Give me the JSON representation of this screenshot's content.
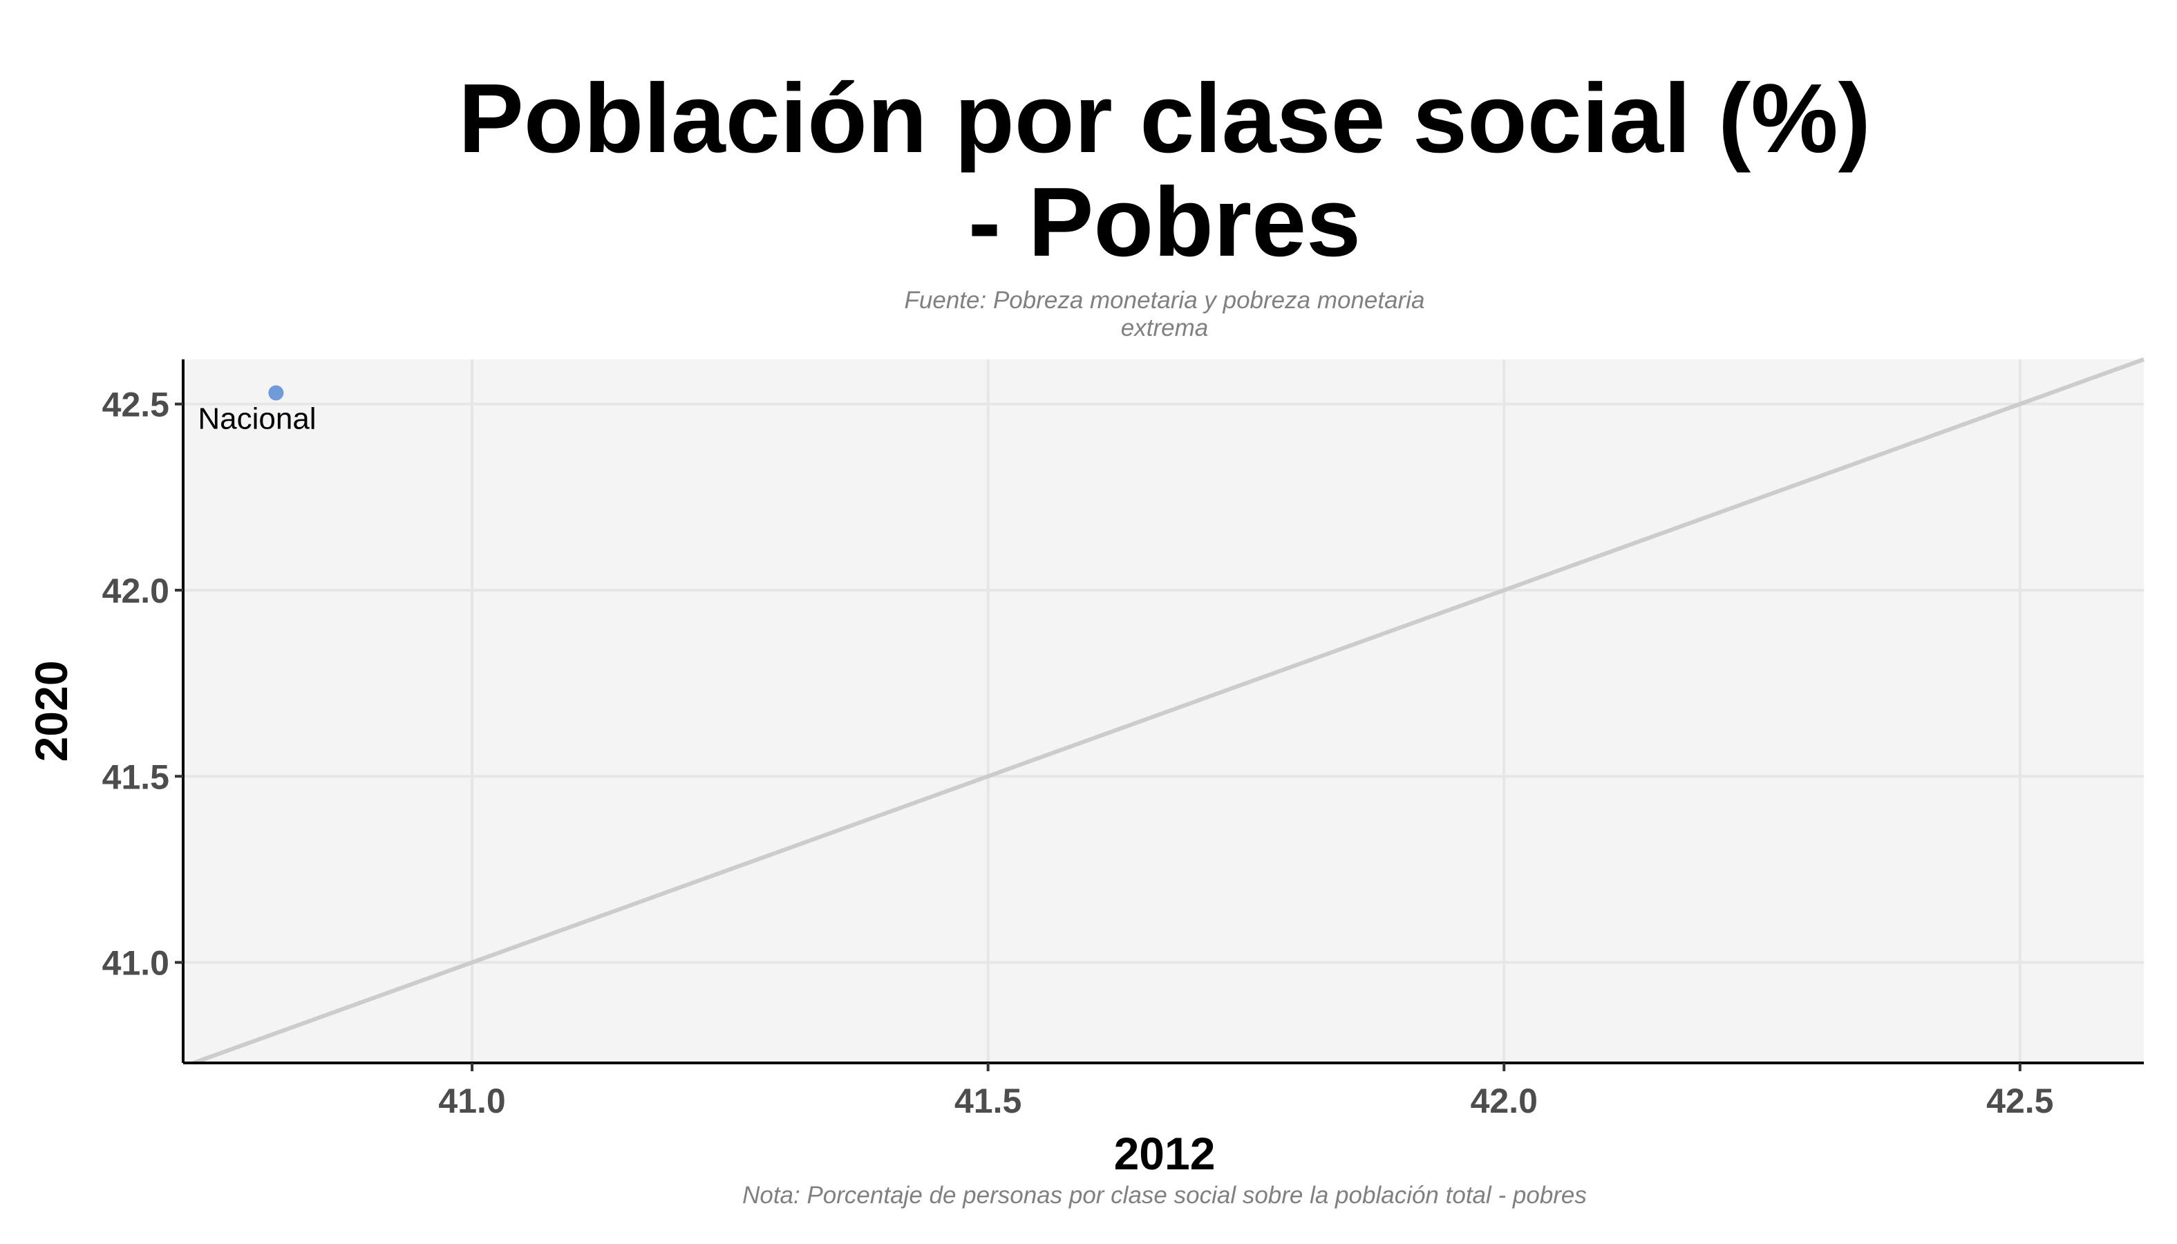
{
  "chart_data": {
    "type": "scatter",
    "title_lines": [
      "Población por clase social (%)",
      "- Pobres"
    ],
    "subtitle_lines": [
      "Fuente: Pobreza monetaria y pobreza monetaria",
      "extrema"
    ],
    "caption": "Nota: Porcentaje de personas por clase social sobre la población total - pobres",
    "xlabel": "2012",
    "ylabel": "2020",
    "xlim": [
      40.72,
      42.62
    ],
    "ylim": [
      40.73,
      42.62
    ],
    "x_ticks": [
      41.0,
      41.5,
      42.0,
      42.5
    ],
    "y_ticks": [
      41.0,
      41.5,
      42.0,
      42.5
    ],
    "tick_labels_x": [
      "41.0",
      "41.5",
      "42.0",
      "42.5"
    ],
    "tick_labels_y": [
      "41.0",
      "41.5",
      "42.0",
      "42.5"
    ],
    "grid": true,
    "reference_line": "y = x",
    "points": [
      {
        "label": "Nacional",
        "x": 40.81,
        "y": 42.53
      }
    ],
    "colors": {
      "panel_background": "#f4f4f4",
      "grid": "#e6e6e6",
      "reference_line": "#cccccc",
      "point": "#6f9bd8",
      "axis": "#000000"
    }
  }
}
